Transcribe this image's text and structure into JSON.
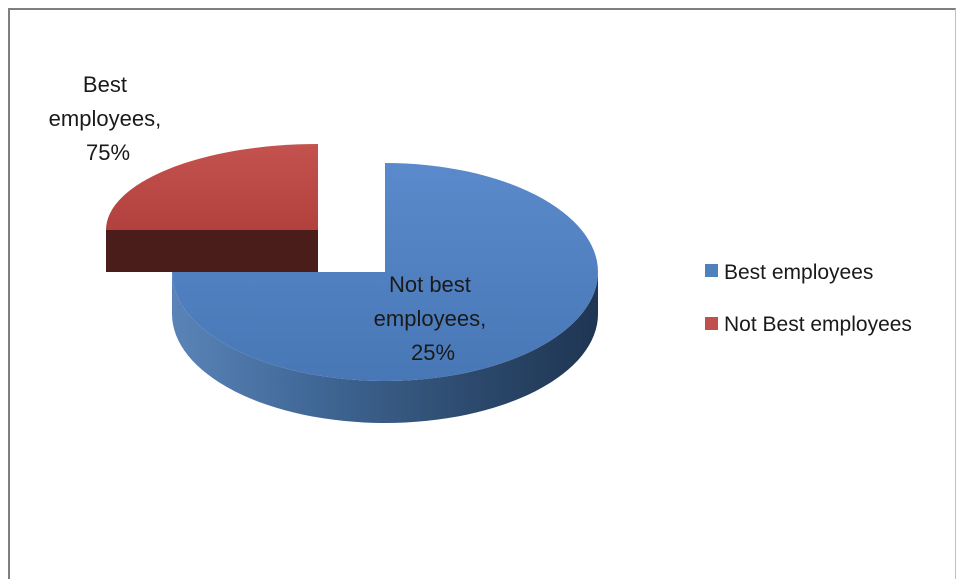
{
  "chart_data": {
    "type": "pie",
    "title": "",
    "categories": [
      "Best employees",
      "Not Best employees"
    ],
    "values": [
      75,
      25
    ],
    "colors": [
      "#4f81bd",
      "#c0504d"
    ],
    "legend_position": "right",
    "data_labels": [
      [
        "Not best",
        "employees,",
        "25%"
      ],
      [
        "Best",
        "employees,",
        "75%"
      ]
    ],
    "legend": [
      {
        "label": "Best employees",
        "color": "#4f81bd"
      },
      {
        "label": "Not Best employees",
        "color": "#c0504d"
      }
    ]
  }
}
